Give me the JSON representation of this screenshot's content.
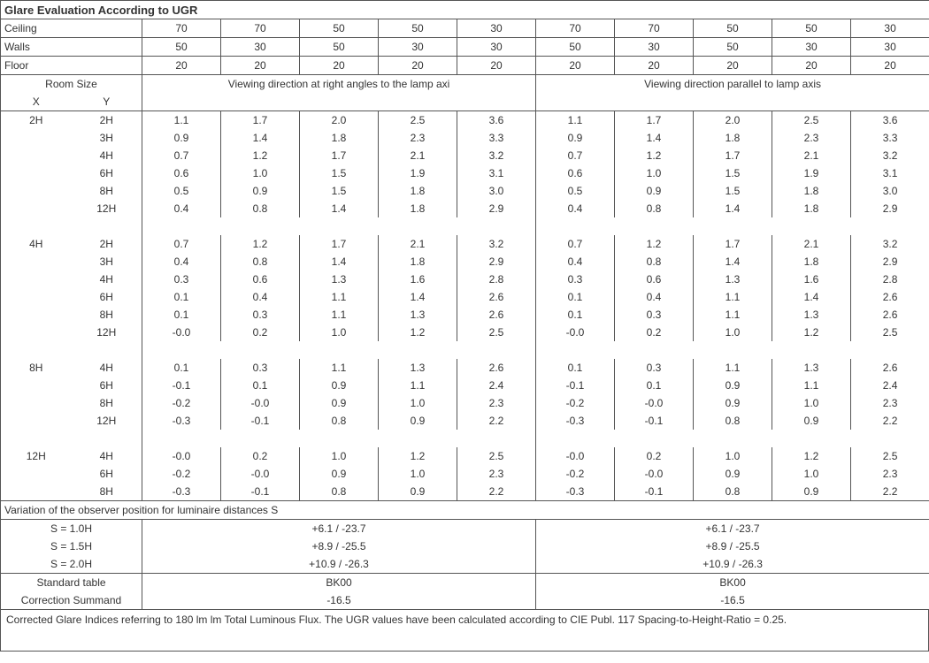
{
  "title": "Glare Evaluation According to UGR",
  "reflectance_labels": {
    "ceiling": "Ceiling",
    "walls": "Walls",
    "floor": "Floor"
  },
  "room_size_label": "Room Size",
  "room_size_x": "X",
  "room_size_y": "Y",
  "dir_left": "Viewing direction at right angles to the lamp axi",
  "dir_right": "Viewing direction parallel to lamp axis",
  "columns": {
    "ceiling": [
      "70",
      "70",
      "50",
      "50",
      "30",
      "70",
      "70",
      "50",
      "50",
      "30"
    ],
    "walls": [
      "50",
      "30",
      "50",
      "30",
      "30",
      "50",
      "30",
      "50",
      "30",
      "30"
    ],
    "floor": [
      "20",
      "20",
      "20",
      "20",
      "20",
      "20",
      "20",
      "20",
      "20",
      "20"
    ]
  },
  "rows": [
    {
      "x": "2H",
      "y": "2H",
      "v": [
        "1.1",
        "1.7",
        "2.0",
        "2.5",
        "3.6",
        "1.1",
        "1.7",
        "2.0",
        "2.5",
        "3.6"
      ]
    },
    {
      "x": "",
      "y": "3H",
      "v": [
        "0.9",
        "1.4",
        "1.8",
        "2.3",
        "3.3",
        "0.9",
        "1.4",
        "1.8",
        "2.3",
        "3.3"
      ]
    },
    {
      "x": "",
      "y": "4H",
      "v": [
        "0.7",
        "1.2",
        "1.7",
        "2.1",
        "3.2",
        "0.7",
        "1.2",
        "1.7",
        "2.1",
        "3.2"
      ]
    },
    {
      "x": "",
      "y": "6H",
      "v": [
        "0.6",
        "1.0",
        "1.5",
        "1.9",
        "3.1",
        "0.6",
        "1.0",
        "1.5",
        "1.9",
        "3.1"
      ]
    },
    {
      "x": "",
      "y": "8H",
      "v": [
        "0.5",
        "0.9",
        "1.5",
        "1.8",
        "3.0",
        "0.5",
        "0.9",
        "1.5",
        "1.8",
        "3.0"
      ]
    },
    {
      "x": "",
      "y": "12H",
      "v": [
        "0.4",
        "0.8",
        "1.4",
        "1.8",
        "2.9",
        "0.4",
        "0.8",
        "1.4",
        "1.8",
        "2.9"
      ]
    },
    {
      "blank": true
    },
    {
      "x": "4H",
      "y": "2H",
      "v": [
        "0.7",
        "1.2",
        "1.7",
        "2.1",
        "3.2",
        "0.7",
        "1.2",
        "1.7",
        "2.1",
        "3.2"
      ]
    },
    {
      "x": "",
      "y": "3H",
      "v": [
        "0.4",
        "0.8",
        "1.4",
        "1.8",
        "2.9",
        "0.4",
        "0.8",
        "1.4",
        "1.8",
        "2.9"
      ]
    },
    {
      "x": "",
      "y": "4H",
      "v": [
        "0.3",
        "0.6",
        "1.3",
        "1.6",
        "2.8",
        "0.3",
        "0.6",
        "1.3",
        "1.6",
        "2.8"
      ]
    },
    {
      "x": "",
      "y": "6H",
      "v": [
        "0.1",
        "0.4",
        "1.1",
        "1.4",
        "2.6",
        "0.1",
        "0.4",
        "1.1",
        "1.4",
        "2.6"
      ]
    },
    {
      "x": "",
      "y": "8H",
      "v": [
        "0.1",
        "0.3",
        "1.1",
        "1.3",
        "2.6",
        "0.1",
        "0.3",
        "1.1",
        "1.3",
        "2.6"
      ]
    },
    {
      "x": "",
      "y": "12H",
      "v": [
        "-0.0",
        "0.2",
        "1.0",
        "1.2",
        "2.5",
        "-0.0",
        "0.2",
        "1.0",
        "1.2",
        "2.5"
      ]
    },
    {
      "blank": true
    },
    {
      "x": "8H",
      "y": "4H",
      "v": [
        "0.1",
        "0.3",
        "1.1",
        "1.3",
        "2.6",
        "0.1",
        "0.3",
        "1.1",
        "1.3",
        "2.6"
      ]
    },
    {
      "x": "",
      "y": "6H",
      "v": [
        "-0.1",
        "0.1",
        "0.9",
        "1.1",
        "2.4",
        "-0.1",
        "0.1",
        "0.9",
        "1.1",
        "2.4"
      ]
    },
    {
      "x": "",
      "y": "8H",
      "v": [
        "-0.2",
        "-0.0",
        "0.9",
        "1.0",
        "2.3",
        "-0.2",
        "-0.0",
        "0.9",
        "1.0",
        "2.3"
      ]
    },
    {
      "x": "",
      "y": "12H",
      "v": [
        "-0.3",
        "-0.1",
        "0.8",
        "0.9",
        "2.2",
        "-0.3",
        "-0.1",
        "0.8",
        "0.9",
        "2.2"
      ]
    },
    {
      "blank": true
    },
    {
      "x": "12H",
      "y": "4H",
      "v": [
        "-0.0",
        "0.2",
        "1.0",
        "1.2",
        "2.5",
        "-0.0",
        "0.2",
        "1.0",
        "1.2",
        "2.5"
      ]
    },
    {
      "x": "",
      "y": "6H",
      "v": [
        "-0.2",
        "-0.0",
        "0.9",
        "1.0",
        "2.3",
        "-0.2",
        "-0.0",
        "0.9",
        "1.0",
        "2.3"
      ]
    },
    {
      "x": "",
      "y": "8H",
      "v": [
        "-0.3",
        "-0.1",
        "0.8",
        "0.9",
        "2.2",
        "-0.3",
        "-0.1",
        "0.8",
        "0.9",
        "2.2"
      ]
    }
  ],
  "variation_title": "Variation of the observer position for luminaire distances S",
  "variation_rows": [
    {
      "label": "S = 1.0H",
      "left": "+6.1 / -23.7",
      "right": "+6.1 / -23.7"
    },
    {
      "label": "S = 1.5H",
      "left": "+8.9 / -25.5",
      "right": "+8.9 / -25.5"
    },
    {
      "label": "S = 2.0H",
      "left": "+10.9 / -26.3",
      "right": "+10.9 / -26.3"
    }
  ],
  "standard_label": "Standard table",
  "standard_left": "BK00",
  "standard_right": "BK00",
  "correction_label": "Correction Summand",
  "correction_left": "-16.5",
  "correction_right": "-16.5",
  "footnote": "Corrected Glare Indices referring to 180 lm lm Total Luminous Flux. The UGR values have been calculated according to CIE Publ. 117    Spacing-to-Height-Ratio = 0.25."
}
